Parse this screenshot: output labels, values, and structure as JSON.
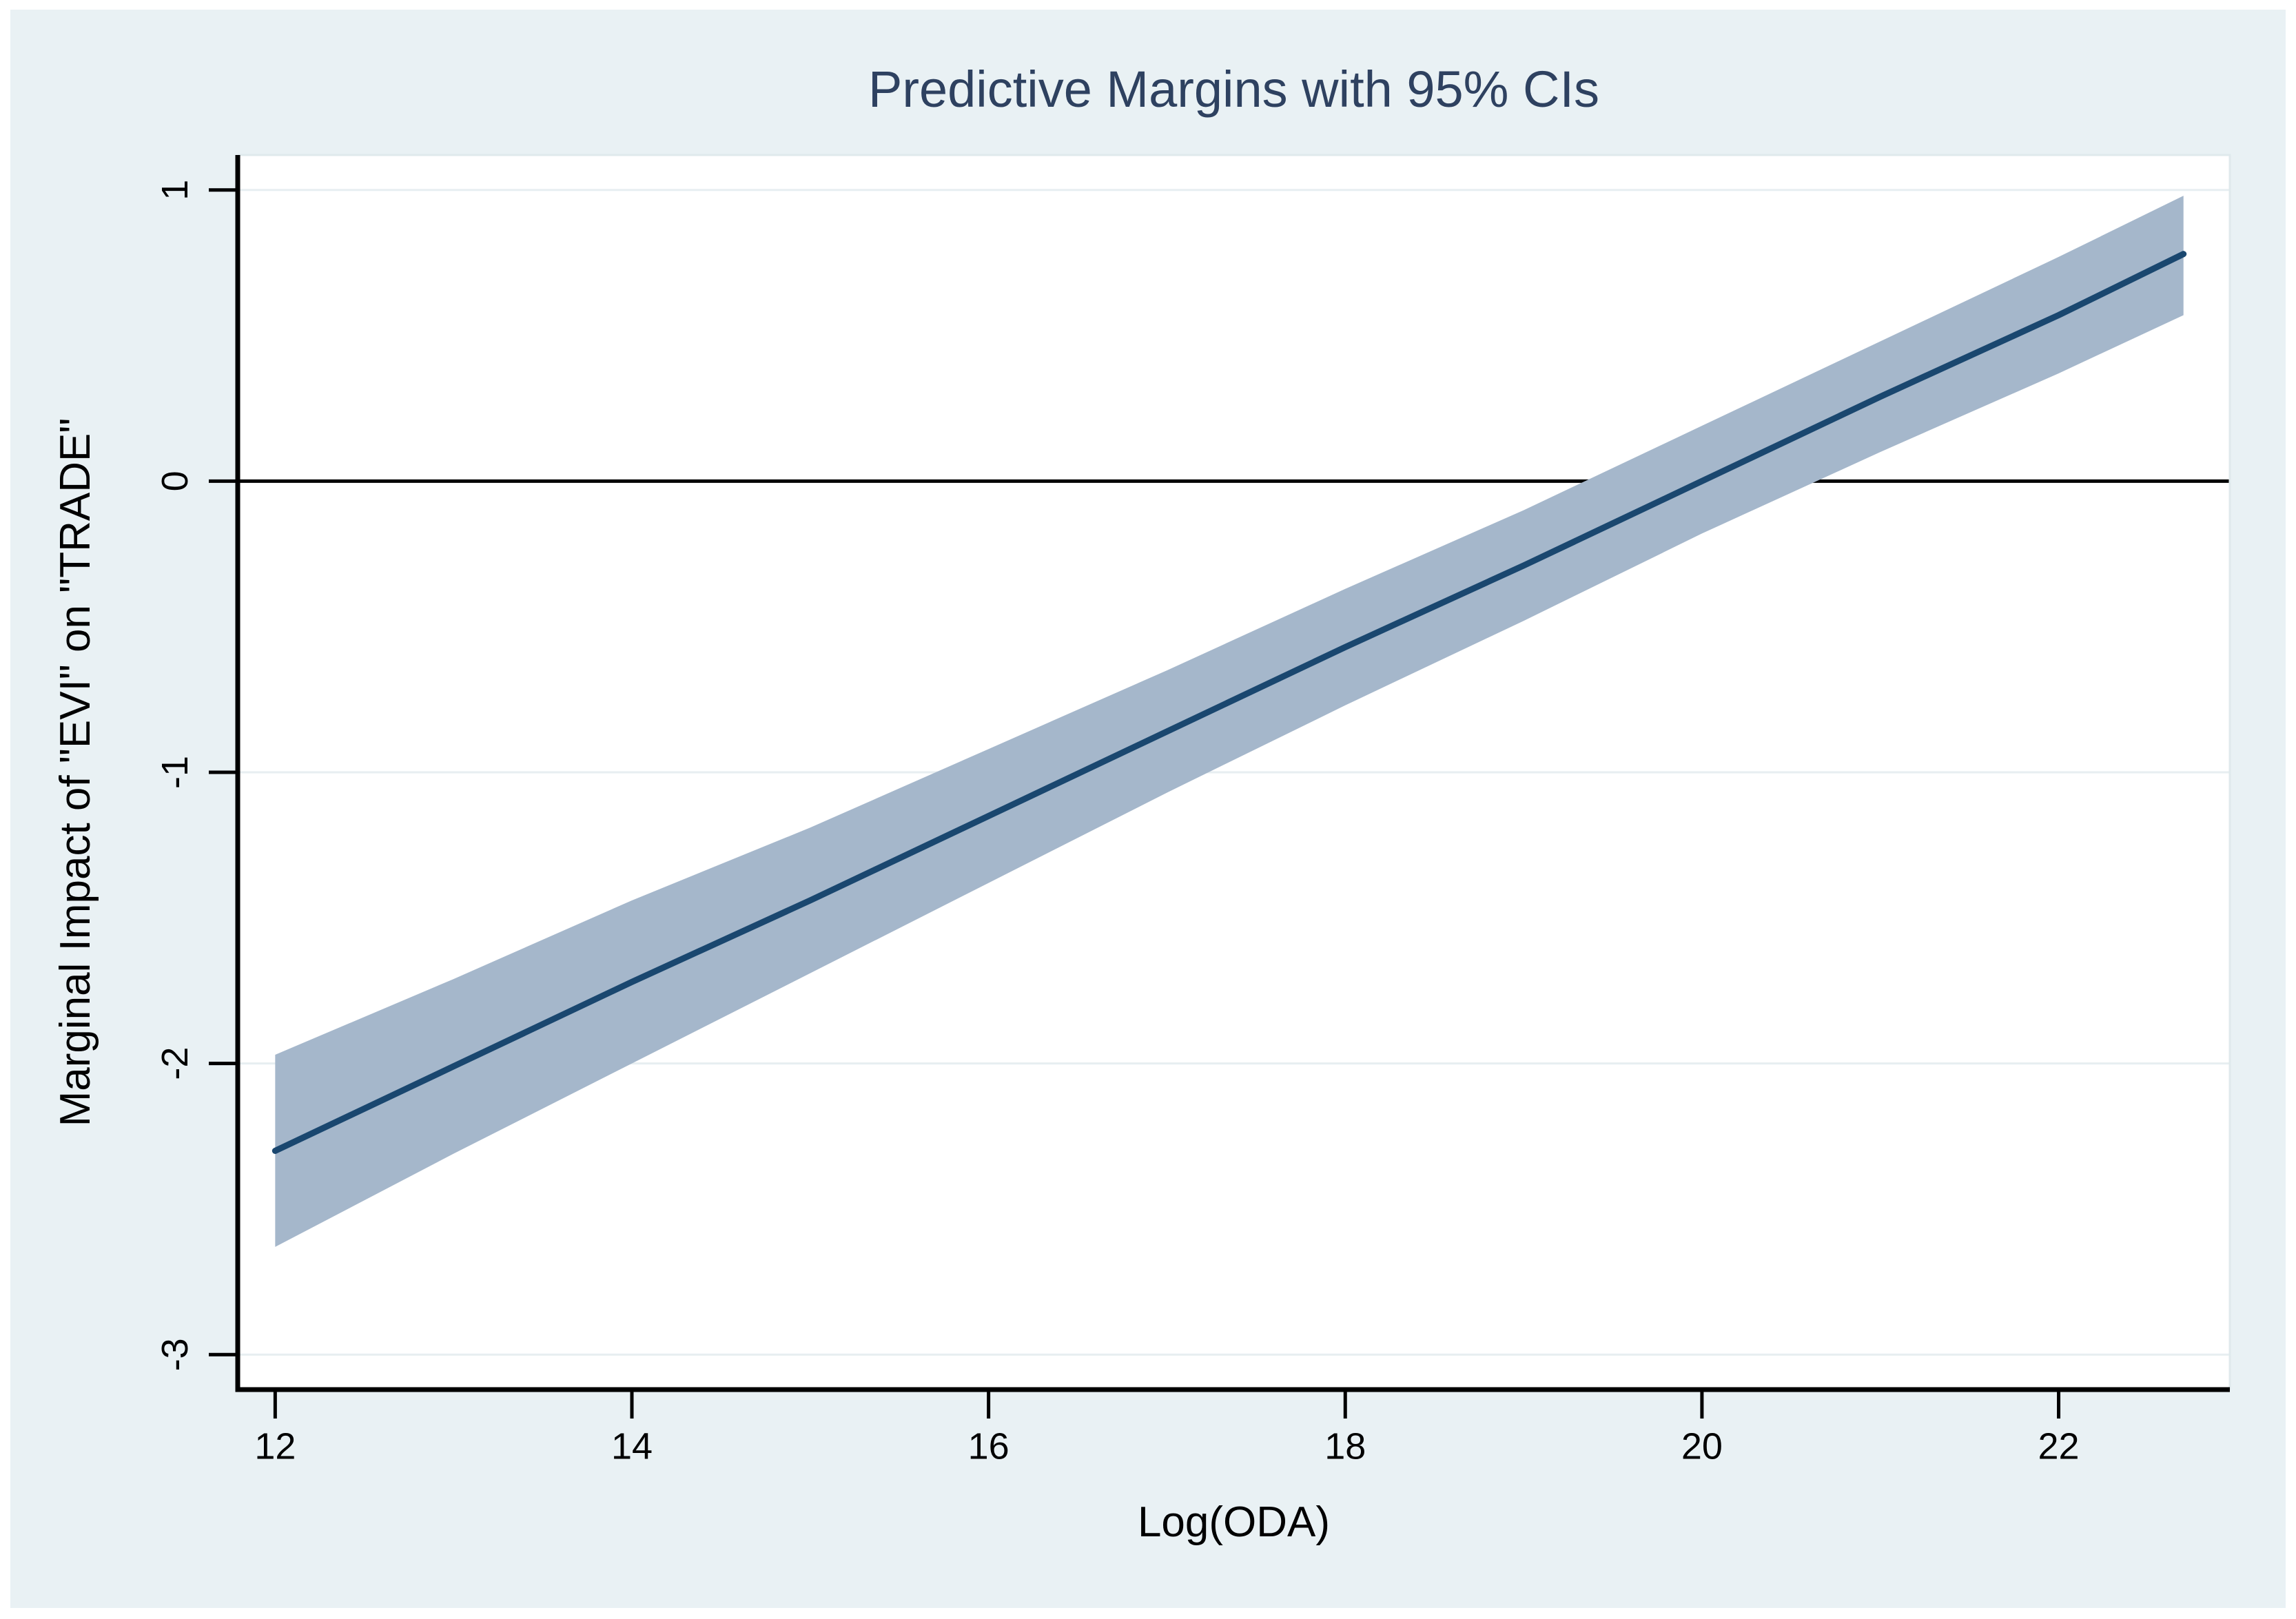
{
  "figure": {
    "title": "Predictive Margins with 95% CIs",
    "colors": {
      "page_margin": "#ffffff",
      "outer_background": "#e9f1f4",
      "plot_background": "#ffffff",
      "plot_outline": "#dfe9ec",
      "gridline": "#e7eef1",
      "axis": "#000000",
      "zero_line": "#000000",
      "title_text": "#2e4160",
      "tick_text": "#000000",
      "ci_band": "#a5b7cb",
      "margin_line": "#1a476f"
    }
  },
  "chart_data": {
    "type": "line",
    "title": "Predictive Margins with 95% CIs",
    "xlabel": "Log(ODA)",
    "ylabel": "Marginal Impact of \"EVI\" on \"TRADE\"",
    "xlim": [
      11.79,
      22.96
    ],
    "ylim": [
      -3.12,
      1.12
    ],
    "x_ticks": [
      12,
      14,
      16,
      18,
      20,
      22
    ],
    "y_ticks": [
      1,
      0,
      -1,
      -2,
      -3
    ],
    "grid": true,
    "legend": "none",
    "reference_line_y": 0,
    "x": [
      12,
      13,
      14,
      15,
      16,
      17,
      18,
      19,
      20,
      21,
      22,
      22.7
    ],
    "series": [
      {
        "name": "Predictive margin",
        "type": "line",
        "values": [
          -2.3,
          -2.01,
          -1.72,
          -1.44,
          -1.15,
          -0.86,
          -0.57,
          -0.29,
          0.0,
          0.29,
          0.57,
          0.78
        ]
      },
      {
        "name": "95% CI lower bound",
        "type": "area-lower",
        "values": [
          -2.63,
          -2.31,
          -2.0,
          -1.69,
          -1.38,
          -1.07,
          -0.77,
          -0.48,
          -0.18,
          0.1,
          0.37,
          0.57
        ]
      },
      {
        "name": "95% CI upper bound",
        "type": "area-upper",
        "values": [
          -1.97,
          -1.71,
          -1.44,
          -1.19,
          -0.92,
          -0.65,
          -0.37,
          -0.1,
          0.19,
          0.48,
          0.77,
          0.98
        ]
      }
    ]
  }
}
